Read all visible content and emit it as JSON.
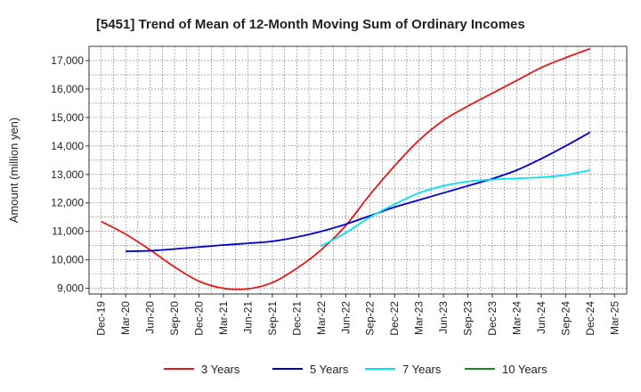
{
  "chart_data": {
    "type": "line",
    "title": "[5451]  Trend of Mean of 12-Month Moving Sum of Ordinary Incomes",
    "xlabel": "",
    "ylabel": "Amount (million yen)",
    "ylim": [
      8800,
      17500
    ],
    "y_ticks": [
      9000,
      10000,
      11000,
      12000,
      13000,
      14000,
      15000,
      16000,
      17000
    ],
    "y_tick_labels": [
      "9,000",
      "10,000",
      "11,000",
      "12,000",
      "13,000",
      "14,000",
      "15,000",
      "16,000",
      "17,000"
    ],
    "x_tick_labels": [
      "Dec-19",
      "Mar-20",
      "Jun-20",
      "Sep-20",
      "Dec-20",
      "Mar-21",
      "Jun-21",
      "Sep-21",
      "Dec-21",
      "Mar-22",
      "Jun-22",
      "Sep-22",
      "Dec-22",
      "Mar-23",
      "Jun-23",
      "Sep-23",
      "Dec-23",
      "Mar-24",
      "Jun-24",
      "Sep-24",
      "Dec-24",
      "Mar-25"
    ],
    "series": [
      {
        "name": "3 Years",
        "color": "#e31a1c",
        "x": [
          0,
          1,
          2,
          3,
          4,
          5,
          6,
          7,
          8,
          9,
          10,
          11,
          12,
          13,
          14,
          15,
          16,
          17,
          18,
          19,
          20
        ],
        "values": [
          11350,
          10900,
          10350,
          9750,
          9250,
          9000,
          8980,
          9200,
          9700,
          10350,
          11200,
          12300,
          13300,
          14200,
          14900,
          15400,
          15850,
          16300,
          16750,
          17100,
          17420
        ]
      },
      {
        "name": "5 Years",
        "color": "#0000cc",
        "x": [
          1,
          2,
          3,
          4,
          5,
          6,
          7,
          8,
          9,
          10,
          11,
          12,
          13,
          14,
          15,
          16,
          17,
          18,
          19,
          20
        ],
        "values": [
          10300,
          10320,
          10380,
          10450,
          10520,
          10580,
          10650,
          10800,
          11000,
          11250,
          11550,
          11850,
          12100,
          12350,
          12600,
          12850,
          13150,
          13550,
          14000,
          14480
        ]
      },
      {
        "name": "7 Years",
        "color": "#00e5ee",
        "x": [
          9,
          10,
          11,
          12,
          13,
          14,
          15,
          16,
          17,
          18,
          19,
          20
        ],
        "values": [
          10480,
          10950,
          11500,
          11950,
          12350,
          12600,
          12750,
          12820,
          12860,
          12900,
          12980,
          13150
        ]
      },
      {
        "name": "10 Years",
        "color": "#1a8a1a",
        "x": [],
        "values": []
      }
    ]
  }
}
